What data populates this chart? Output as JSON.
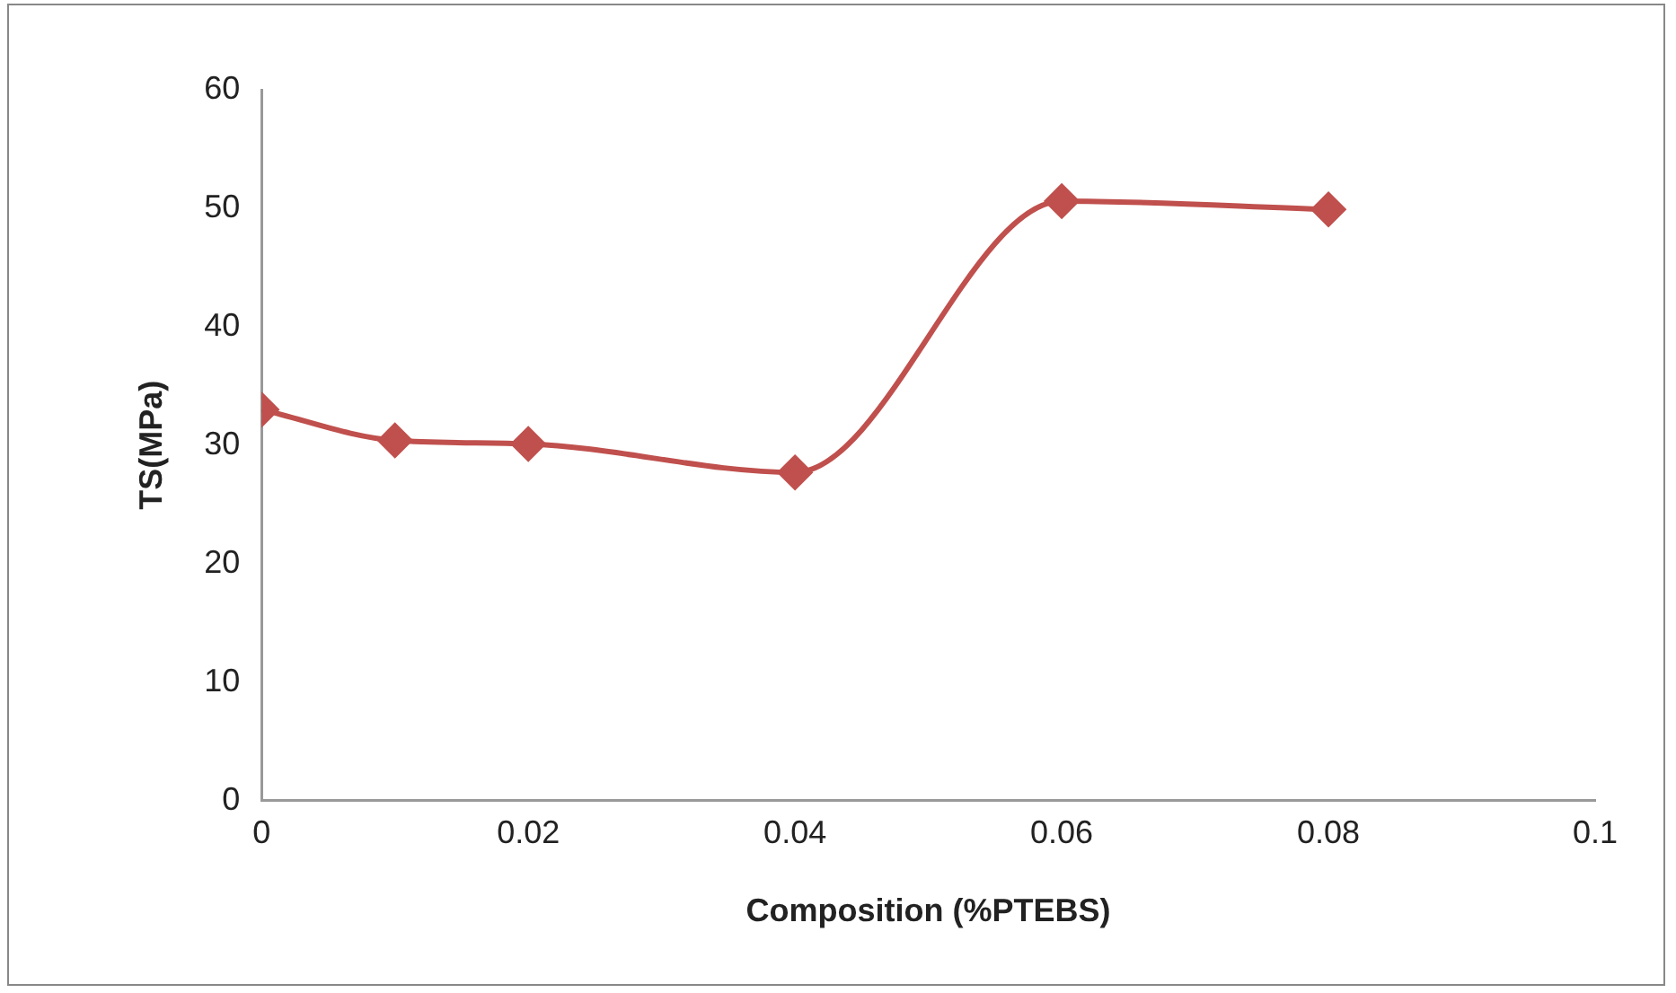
{
  "chart_data": {
    "type": "line",
    "xlabel": "Composition (%PTEBS)",
    "ylabel": "TS(MPa)",
    "x": [
      0,
      0.01,
      0.02,
      0.04,
      0.06,
      0.08
    ],
    "series": [
      {
        "color": "#c0504d",
        "values": [
          33.0,
          30.4,
          30.1,
          27.7,
          50.6,
          49.9
        ]
      }
    ],
    "xlim": [
      0,
      0.1
    ],
    "xticks": [
      0,
      0.02,
      0.04,
      0.06,
      0.08,
      0.1
    ],
    "ylim": [
      0,
      60
    ],
    "yticks": [
      0,
      10,
      20,
      30,
      40,
      50,
      60
    ],
    "grid": false,
    "legend": false,
    "marker": "diamond",
    "line_style": "solid"
  }
}
